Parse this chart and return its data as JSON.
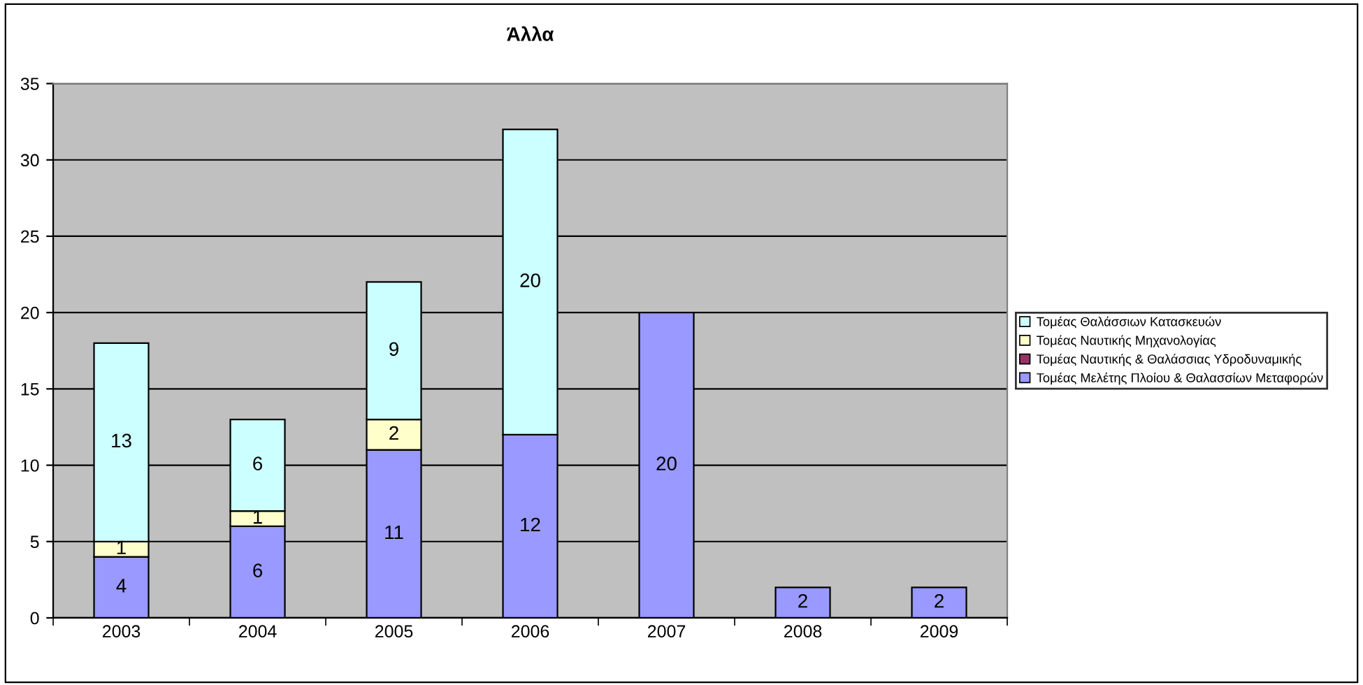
{
  "chart_data": {
    "type": "bar",
    "title": "Άλλα",
    "categories": [
      "2003",
      "2004",
      "2005",
      "2006",
      "2007",
      "2008",
      "2009"
    ],
    "stacked": true,
    "data_labels": true,
    "grid": "y",
    "legend": "right",
    "ylim": [
      0,
      35
    ],
    "yticks": [
      0,
      5,
      10,
      15,
      20,
      25,
      30,
      35
    ],
    "series": [
      {
        "name": "Τομέας Μελέτης Πλοίου & Θαλασσίων Μεταφορών",
        "color": "#9999ff",
        "values": [
          4,
          6,
          11,
          12,
          20,
          2,
          2
        ]
      },
      {
        "name": "Τομέας Ναυτικής & Θαλάσσιας Υδροδυναμικής",
        "color": "#993366",
        "values": [
          null,
          null,
          null,
          null,
          null,
          null,
          null
        ]
      },
      {
        "name": "Τομέας Ναυτικής Μηχανολογίας",
        "color": "#ffffcc",
        "values": [
          1,
          1,
          2,
          null,
          null,
          null,
          null
        ]
      },
      {
        "name": "Τομέας Θαλάσσιων Κατασκευών",
        "color": "#ccffff",
        "values": [
          13,
          6,
          9,
          20,
          null,
          null,
          null
        ]
      }
    ]
  }
}
